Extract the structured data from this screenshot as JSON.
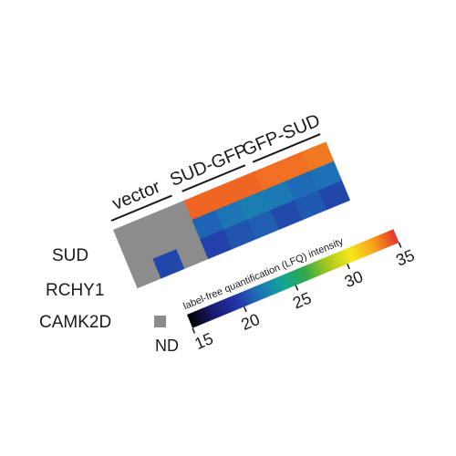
{
  "chart_data": {
    "type": "heatmap",
    "groups": [
      "vector",
      "SUD-GFP",
      "GFP-SUD"
    ],
    "rows": [
      "SUD",
      "RCHY1",
      "CAMK2D"
    ],
    "replicates_per_group": 3,
    "values": [
      [
        null,
        null,
        null,
        34.0,
        34.0,
        34.0,
        33.8,
        33.8,
        33.6
      ],
      [
        null,
        null,
        null,
        21.2,
        21.8,
        22.2,
        22.0,
        21.4,
        21.6
      ],
      [
        null,
        20.2,
        null,
        20.0,
        20.6,
        21.0,
        20.3,
        20.8,
        20.2
      ]
    ],
    "missing_label": "ND",
    "missing_color": "#8c8c8c",
    "colorbar": {
      "title": "label-free quantification (LFQ) intensity",
      "min": 15,
      "max": 35,
      "ticks": [
        15,
        20,
        25,
        30,
        35
      ],
      "tick_labels": [
        "15",
        "20",
        "25",
        "30",
        "35"
      ],
      "colors": [
        "#000000",
        "#1a1a6e",
        "#2431a5",
        "#1e72b8",
        "#12a39a",
        "#2ea84a",
        "#a8c81e",
        "#f5e81c",
        "#f6a21a",
        "#e8332c"
      ]
    }
  }
}
